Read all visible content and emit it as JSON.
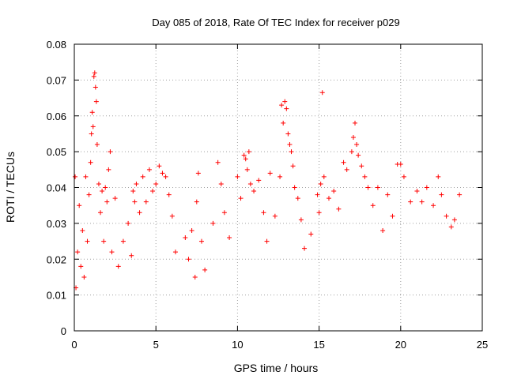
{
  "chart_data": {
    "type": "scatter",
    "title": "Day 085 of 2018, Rate Of TEC Index for receiver p029",
    "xlabel": "GPS time / hours",
    "ylabel": "ROTI / TECUs",
    "xlim": [
      0,
      25
    ],
    "ylim": [
      0,
      0.08
    ],
    "xticks": [
      0,
      5,
      10,
      15,
      20,
      25
    ],
    "xtick_labels": [
      "0",
      "5",
      "10",
      "15",
      "20",
      "25"
    ],
    "yticks": [
      0,
      0.01,
      0.02,
      0.03,
      0.04,
      0.05,
      0.06,
      0.07,
      0.08
    ],
    "ytick_labels": [
      "0",
      "0.01",
      "0.02",
      "0.03",
      "0.04",
      "0.05",
      "0.06",
      "0.07",
      "0.08"
    ],
    "grid": true,
    "marker": "+",
    "color": "#ff0000",
    "series": [
      {
        "name": "ROTI",
        "points": [
          [
            0.05,
            0.043
          ],
          [
            0.1,
            0.012
          ],
          [
            0.2,
            0.022
          ],
          [
            0.3,
            0.035
          ],
          [
            0.4,
            0.018
          ],
          [
            0.5,
            0.028
          ],
          [
            0.6,
            0.015
          ],
          [
            0.7,
            0.043
          ],
          [
            0.8,
            0.025
          ],
          [
            0.9,
            0.038
          ],
          [
            1.0,
            0.047
          ],
          [
            1.05,
            0.055
          ],
          [
            1.1,
            0.061
          ],
          [
            1.15,
            0.057
          ],
          [
            1.2,
            0.071
          ],
          [
            1.25,
            0.072
          ],
          [
            1.3,
            0.068
          ],
          [
            1.35,
            0.064
          ],
          [
            1.4,
            0.052
          ],
          [
            1.5,
            0.041
          ],
          [
            1.6,
            0.033
          ],
          [
            1.7,
            0.039
          ],
          [
            1.8,
            0.025
          ],
          [
            1.9,
            0.04
          ],
          [
            2.0,
            0.036
          ],
          [
            2.1,
            0.045
          ],
          [
            2.2,
            0.05
          ],
          [
            2.3,
            0.022
          ],
          [
            2.5,
            0.037
          ],
          [
            2.7,
            0.018
          ],
          [
            3.0,
            0.025
          ],
          [
            3.3,
            0.03
          ],
          [
            3.5,
            0.021
          ],
          [
            3.6,
            0.039
          ],
          [
            3.7,
            0.036
          ],
          [
            3.8,
            0.041
          ],
          [
            4.0,
            0.033
          ],
          [
            4.2,
            0.043
          ],
          [
            4.4,
            0.036
          ],
          [
            4.6,
            0.045
          ],
          [
            4.8,
            0.039
          ],
          [
            5.0,
            0.041
          ],
          [
            5.2,
            0.046
          ],
          [
            5.4,
            0.044
          ],
          [
            5.6,
            0.043
          ],
          [
            5.8,
            0.038
          ],
          [
            6.0,
            0.032
          ],
          [
            6.2,
            0.022
          ],
          [
            6.8,
            0.026
          ],
          [
            7.0,
            0.02
          ],
          [
            7.2,
            0.028
          ],
          [
            7.4,
            0.015
          ],
          [
            7.5,
            0.036
          ],
          [
            7.6,
            0.044
          ],
          [
            7.8,
            0.025
          ],
          [
            8.0,
            0.017
          ],
          [
            8.5,
            0.03
          ],
          [
            8.8,
            0.047
          ],
          [
            9.0,
            0.041
          ],
          [
            9.2,
            0.033
          ],
          [
            9.5,
            0.026
          ],
          [
            10.0,
            0.043
          ],
          [
            10.2,
            0.037
          ],
          [
            10.4,
            0.049
          ],
          [
            10.5,
            0.048
          ],
          [
            10.6,
            0.045
          ],
          [
            10.7,
            0.05
          ],
          [
            10.8,
            0.041
          ],
          [
            11.0,
            0.039
          ],
          [
            11.3,
            0.042
          ],
          [
            11.6,
            0.033
          ],
          [
            11.8,
            0.025
          ],
          [
            12.0,
            0.044
          ],
          [
            12.3,
            0.032
          ],
          [
            12.6,
            0.043
          ],
          [
            12.7,
            0.063
          ],
          [
            12.8,
            0.058
          ],
          [
            12.9,
            0.064
          ],
          [
            13.0,
            0.062
          ],
          [
            13.1,
            0.055
          ],
          [
            13.2,
            0.052
          ],
          [
            13.3,
            0.05
          ],
          [
            13.4,
            0.046
          ],
          [
            13.5,
            0.04
          ],
          [
            13.7,
            0.037
          ],
          [
            13.9,
            0.031
          ],
          [
            14.1,
            0.023
          ],
          [
            14.5,
            0.027
          ],
          [
            14.9,
            0.038
          ],
          [
            15.0,
            0.033
          ],
          [
            15.1,
            0.041
          ],
          [
            15.2,
            0.0665
          ],
          [
            15.3,
            0.043
          ],
          [
            15.6,
            0.037
          ],
          [
            15.9,
            0.039
          ],
          [
            16.2,
            0.034
          ],
          [
            16.5,
            0.047
          ],
          [
            16.7,
            0.045
          ],
          [
            17.0,
            0.05
          ],
          [
            17.1,
            0.054
          ],
          [
            17.2,
            0.058
          ],
          [
            17.3,
            0.052
          ],
          [
            17.4,
            0.049
          ],
          [
            17.6,
            0.046
          ],
          [
            17.8,
            0.043
          ],
          [
            18.0,
            0.04
          ],
          [
            18.3,
            0.035
          ],
          [
            18.6,
            0.04
          ],
          [
            18.9,
            0.028
          ],
          [
            19.2,
            0.038
          ],
          [
            19.5,
            0.032
          ],
          [
            19.8,
            0.0465
          ],
          [
            20.0,
            0.0465
          ],
          [
            20.2,
            0.043
          ],
          [
            20.6,
            0.036
          ],
          [
            21.0,
            0.039
          ],
          [
            21.3,
            0.036
          ],
          [
            21.6,
            0.04
          ],
          [
            22.0,
            0.035
          ],
          [
            22.3,
            0.043
          ],
          [
            22.5,
            0.038
          ],
          [
            22.8,
            0.032
          ],
          [
            23.1,
            0.029
          ],
          [
            23.3,
            0.031
          ],
          [
            23.6,
            0.038
          ]
        ]
      }
    ]
  }
}
